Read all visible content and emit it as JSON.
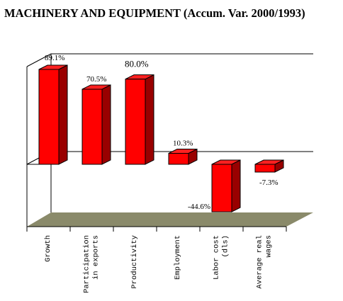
{
  "chart_data": {
    "type": "bar",
    "title": "MACHINERY AND EQUIPMENT (Accum. Var. 2000/1993)",
    "categories": [
      "Growth",
      "Participation in exports",
      "Productivity",
      "Employment",
      "Labor cost (dls)",
      "Average real wages"
    ],
    "category_lines": [
      [
        "Growth"
      ],
      [
        "Participation",
        "in exports"
      ],
      [
        "Productivity"
      ],
      [
        "Employment"
      ],
      [
        "Labor cost",
        "(dls)"
      ],
      [
        "Average real",
        "wages"
      ]
    ],
    "values": [
      89.1,
      70.5,
      80.0,
      10.3,
      -44.6,
      -7.3
    ],
    "data_labels": [
      "89.1%",
      "70.5%",
      "80.0%",
      "10.3%",
      "-44.6%",
      "-7.3%"
    ],
    "bar_color": "#ff0000",
    "bar_side_color": "#990000",
    "bar_top_color": "#ff2020",
    "floor_color": "#8a8a6a",
    "xlabel": "",
    "ylabel": "",
    "grid": false,
    "legend": "none"
  }
}
